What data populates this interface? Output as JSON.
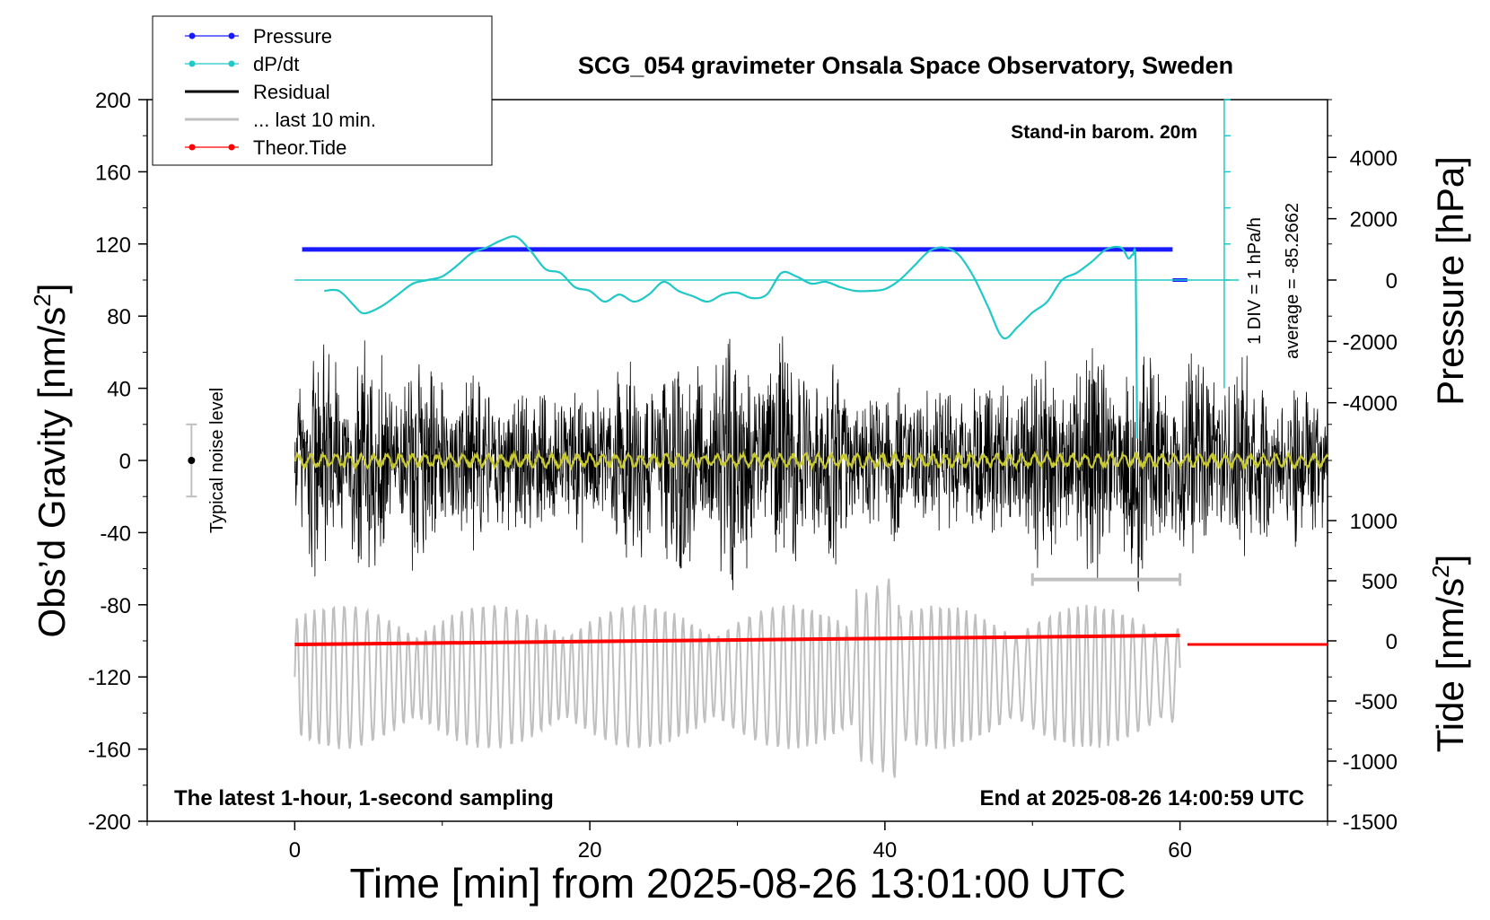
{
  "chart_data": {
    "type": "line",
    "title": "SCG_054 gravimeter Onsala Space Observatory, Sweden",
    "xlabel": "Time [min] from 2025-08-26 13:01:00 UTC",
    "ylabel": "Obs’d Gravity [nm/s",
    "ylabel_sup": "2",
    "ylabel_end": "]",
    "y2label_pressure": "Pressure [hPa]",
    "y2label_tide": "Tide [nm/s",
    "y2label_tide_sup": "2",
    "y2label_tide_end": "]",
    "xlim": [
      -10,
      70
    ],
    "ylim": [
      -200,
      200
    ],
    "x_ticks": [
      "0",
      "20",
      "40",
      "60"
    ],
    "y_ticks": [
      "200",
      "160",
      "120",
      "80",
      "40",
      "0",
      "-40",
      "-80",
      "-120",
      "-160",
      "-200"
    ],
    "pressure_ticks": [
      "4000",
      "2000",
      "0",
      "-2000",
      "-4000"
    ],
    "tide_ticks": [
      "1000",
      "500",
      "0",
      "-500",
      "-1000",
      "-1500"
    ],
    "legend": [
      {
        "label": "Pressure",
        "color": "#1a1aff",
        "style": "line-dot"
      },
      {
        "label": "dP/dt",
        "color": "#20c8c8",
        "style": "line-dot"
      },
      {
        "label": "Residual",
        "color": "#000000",
        "style": "line"
      },
      {
        "label": "... last 10 min.",
        "color": "#bfbfbf",
        "style": "line"
      },
      {
        "label": "Theor.Tide",
        "color": "#ff0000",
        "style": "line-dot"
      }
    ],
    "annotations": {
      "barometer": "Stand-in barom. 20m",
      "div_note": "1 DIV = 1 hPa/h",
      "average": "average = -85.2662",
      "noise": "Typical noise level",
      "bottom_left": "The latest 1-hour, 1-second sampling",
      "bottom_right": "End at 2025-08-26 14:00:59 UTC"
    },
    "series": [
      {
        "name": "Pressure",
        "x_range": [
          0.5,
          59.5
        ],
        "value_nm_s2": 117,
        "tail": {
          "x_range": [
            59.5,
            60.5
          ],
          "value_nm_s2": 100
        }
      },
      {
        "name": "dP/dt",
        "baseline_nm_s2": 100,
        "x": [
          2,
          3,
          4,
          4.5,
          5,
          6,
          7,
          8,
          9,
          10,
          11,
          12,
          13,
          14,
          15,
          16,
          17,
          18,
          19,
          20,
          21,
          22,
          23,
          24,
          25,
          26,
          27,
          28,
          29,
          30,
          31,
          32,
          33,
          34,
          35,
          36,
          37,
          38,
          39,
          40,
          41,
          42,
          43,
          44,
          45,
          46,
          47,
          48,
          49,
          50,
          51,
          52,
          53,
          54,
          55,
          56,
          56.5,
          56.8,
          57,
          57.1
        ],
        "y": [
          94,
          94,
          86,
          82,
          82,
          86,
          92,
          98,
          100,
          102,
          108,
          115,
          118,
          122,
          124,
          116,
          106,
          104,
          96,
          94,
          88,
          92,
          88,
          92,
          99,
          94,
          91,
          88,
          92,
          93,
          90,
          92,
          104,
          102,
          98,
          99,
          96,
          94,
          94,
          95,
          100,
          108,
          116,
          118,
          114,
          102,
          85,
          68,
          74,
          82,
          88,
          100,
          104,
          110,
          117,
          118,
          112,
          114,
          108,
          12
        ]
      },
      {
        "name": "Residual",
        "x_range": [
          0,
          70
        ],
        "typical_peak_nm_s2": 70
      },
      {
        "name": "... last 10 min.",
        "x_range": [
          0,
          60
        ],
        "offset_nm_s2": -120,
        "typical_amplitude_nm_s2": 40
      },
      {
        "name": "Theor.Tide",
        "x": [
          0,
          60,
          60.5,
          70
        ],
        "y": [
          -102,
          -97,
          -102,
          -102
        ]
      }
    ],
    "noise_bar": {
      "x": -7,
      "low": -20,
      "high": 20,
      "center": 0
    },
    "window_bar": {
      "x_range": [
        50,
        60
      ],
      "y": -66
    }
  }
}
